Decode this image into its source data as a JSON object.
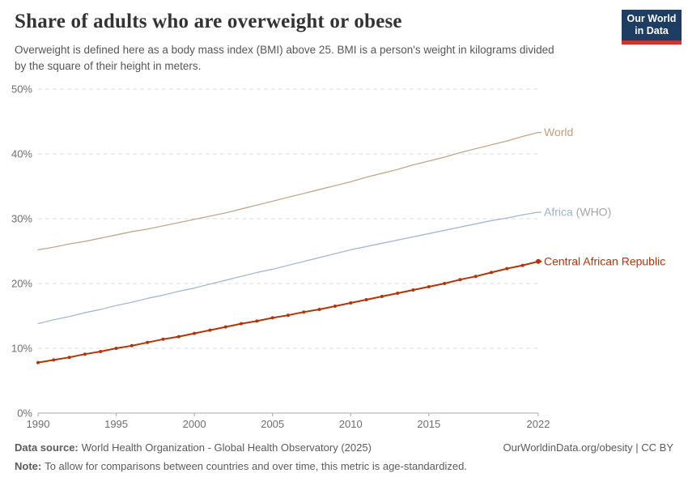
{
  "header": {
    "title": "Share of adults who are overweight or obese",
    "subtitle_lines": [
      "Overweight is defined here as a body mass index (BMI) above 25. BMI is a person's weight in kilograms divided",
      "by the square of their height in meters."
    ],
    "logo_line1": "Our World",
    "logo_line2": "in Data",
    "logo_bg_color": "#1d3d63",
    "logo_bar_color": "#cf342e"
  },
  "footer": {
    "datasource_label": "Data source:",
    "datasource_text": "World Health Organization - Global Health Observatory (2025)",
    "note_label": "Note:",
    "note_text": "To allow for comparisons between countries and over time, this metric is age-standardized.",
    "link_text": "OurWorldinData.org/obesity | CC BY"
  },
  "chart_data": {
    "type": "line",
    "title": "Share of adults who are overweight or obese",
    "xlabel": "",
    "ylabel": "",
    "xlim": [
      1990,
      2022
    ],
    "ylim": [
      0,
      50
    ],
    "grid": "horizontal-dashed",
    "legend_position": "end-of-line-labels",
    "xticks": [
      1990,
      1995,
      2000,
      2005,
      2010,
      2015,
      2022
    ],
    "xtick_labels": [
      "1990",
      "1995",
      "2000",
      "2005",
      "2010",
      "2015",
      "2022"
    ],
    "yticks": [
      0,
      10,
      20,
      30,
      40,
      50
    ],
    "ytick_labels": [
      "0%",
      "10%",
      "20%",
      "30%",
      "40%",
      "50%"
    ],
    "x": [
      1990,
      1991,
      1992,
      1993,
      1994,
      1995,
      1996,
      1997,
      1998,
      1999,
      2000,
      2001,
      2002,
      2003,
      2004,
      2005,
      2006,
      2007,
      2008,
      2009,
      2010,
      2011,
      2012,
      2013,
      2014,
      2015,
      2016,
      2017,
      2018,
      2019,
      2020,
      2021,
      2022
    ],
    "series": [
      {
        "name": "World",
        "label": "World",
        "label_suffix": "",
        "color": "#bfa081",
        "suffix_color": "#a5a5a5",
        "markers": false,
        "line_width": 1.2,
        "values": [
          25.2,
          25.6,
          26.1,
          26.5,
          27.0,
          27.5,
          28.0,
          28.4,
          28.9,
          29.4,
          29.9,
          30.4,
          30.9,
          31.5,
          32.1,
          32.7,
          33.3,
          33.9,
          34.5,
          35.1,
          35.7,
          36.4,
          37.0,
          37.6,
          38.3,
          38.9,
          39.5,
          40.2,
          40.8,
          41.4,
          42.0,
          42.7,
          43.3
        ]
      },
      {
        "name": "Africa (WHO)",
        "label": "Africa",
        "label_suffix": " (WHO)",
        "color": "#9db3d3",
        "suffix_color": "#a5a5a5",
        "markers": false,
        "line_width": 1.2,
        "values": [
          13.8,
          14.4,
          14.9,
          15.5,
          16.0,
          16.6,
          17.1,
          17.7,
          18.2,
          18.8,
          19.3,
          19.9,
          20.5,
          21.1,
          21.7,
          22.2,
          22.8,
          23.4,
          24.0,
          24.6,
          25.2,
          25.7,
          26.2,
          26.7,
          27.2,
          27.7,
          28.2,
          28.7,
          29.2,
          29.7,
          30.1,
          30.6,
          31.0
        ]
      },
      {
        "name": "Central African Republic",
        "label": "Central African Republic",
        "label_suffix": "",
        "color": "#b13507",
        "suffix_color": "#a5a5a5",
        "markers": true,
        "line_width": 2,
        "values": [
          7.8,
          8.2,
          8.6,
          9.1,
          9.5,
          10.0,
          10.4,
          10.9,
          11.4,
          11.8,
          12.3,
          12.8,
          13.3,
          13.8,
          14.2,
          14.7,
          15.1,
          15.6,
          16.0,
          16.5,
          17.0,
          17.5,
          18.0,
          18.5,
          19.0,
          19.5,
          20.0,
          20.6,
          21.1,
          21.7,
          22.3,
          22.8,
          23.4
        ]
      }
    ],
    "colors": {
      "gridline": "#dcdcdc",
      "axis": "#a8a8a8",
      "tick_label": "#6e6e6e"
    }
  }
}
